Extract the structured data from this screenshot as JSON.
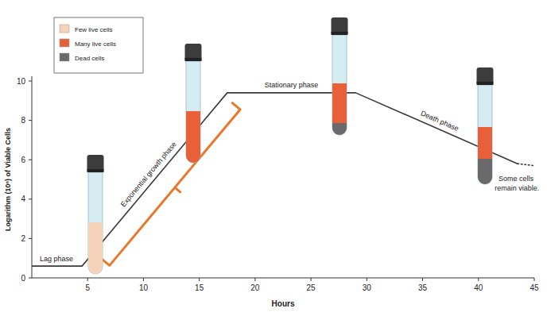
{
  "chart_data": {
    "type": "line",
    "x_label": "Hours",
    "y_label": "Logarithm (10ⁿ) of Viable Cells",
    "x": [
      0,
      4.5,
      17.5,
      29,
      43.5,
      45
    ],
    "series": [
      {
        "color": "#3a3a3a",
        "line_style": "solid",
        "values": [
          0.6,
          0.6,
          9.4,
          9.4,
          5.8,
          null
        ]
      },
      {
        "color": "#3a3a3a",
        "line_style": "dotted",
        "values": [
          null,
          null,
          null,
          null,
          5.8,
          5.7
        ]
      }
    ],
    "xlim": [
      0,
      45
    ],
    "ylim": [
      0,
      10
    ],
    "xticks": [
      5,
      10,
      15,
      20,
      25,
      30,
      35,
      40,
      45
    ],
    "yticks": [
      0,
      2,
      4,
      6,
      8,
      10
    ],
    "grid": false,
    "legend": "top-left",
    "legend_items": [
      {
        "label": "Few live cells",
        "color": "#f6d3b8"
      },
      {
        "label": "Many live cells",
        "color": "#e8603a"
      },
      {
        "label": "Dead cells",
        "color": "#6a6a6a"
      }
    ],
    "annotations": [
      "Lag phase",
      "Exponential growth phase",
      "Stationary phase",
      "Death phase",
      "Some cells remain viable."
    ]
  }
}
